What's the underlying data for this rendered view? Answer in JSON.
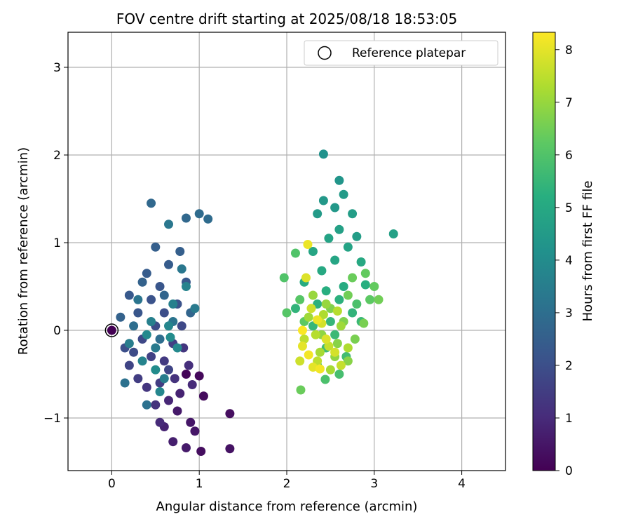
{
  "chart_data": {
    "type": "scatter",
    "title": "FOV centre drift starting at 2025/08/18 18:53:05",
    "xlabel": "Angular distance from reference (arcmin)",
    "ylabel": "Rotation from reference (arcmin)",
    "xlim": [
      -0.5,
      4.5
    ],
    "ylim": [
      -1.6,
      3.4
    ],
    "xticks": [
      "0",
      "1",
      "2",
      "3",
      "4"
    ],
    "yticks": [
      "−1",
      "0",
      "1",
      "2",
      "3"
    ],
    "xtick_values": [
      0,
      1,
      2,
      3,
      4
    ],
    "ytick_values": [
      -1,
      0,
      1,
      2,
      3
    ],
    "grid": true,
    "legend": {
      "position": "top-right",
      "label": "Reference platepar"
    },
    "reference_point": {
      "x": 0,
      "y": 0
    },
    "colorbar": {
      "label": "Hours from first FF file",
      "colormap": "viridis",
      "range": [
        0,
        8.33
      ],
      "ticks": [
        "0",
        "1",
        "2",
        "3",
        "4",
        "5",
        "6",
        "7",
        "8"
      ],
      "tick_values": [
        0,
        1,
        2,
        3,
        4,
        5,
        6,
        7,
        8
      ]
    },
    "points": [
      {
        "x": 0.85,
        "y": -0.5,
        "hours": 0.1
      },
      {
        "x": 1.0,
        "y": -0.52,
        "hours": 0.2
      },
      {
        "x": 1.05,
        "y": -0.75,
        "hours": 0.25
      },
      {
        "x": 1.02,
        "y": -1.38,
        "hours": 0.3
      },
      {
        "x": 1.35,
        "y": -0.95,
        "hours": 0.3
      },
      {
        "x": 1.35,
        "y": -1.35,
        "hours": 0.4
      },
      {
        "x": 0.9,
        "y": -1.05,
        "hours": 0.5
      },
      {
        "x": 0.95,
        "y": -1.15,
        "hours": 0.5
      },
      {
        "x": 0.85,
        "y": -1.34,
        "hours": 0.6
      },
      {
        "x": 0.75,
        "y": -0.92,
        "hours": 0.6
      },
      {
        "x": 0.7,
        "y": -1.27,
        "hours": 0.7
      },
      {
        "x": 0.6,
        "y": -1.1,
        "hours": 0.8
      },
      {
        "x": 0.78,
        "y": -0.72,
        "hours": 0.8
      },
      {
        "x": 0.65,
        "y": -0.8,
        "hours": 0.9
      },
      {
        "x": 0.55,
        "y": -1.05,
        "hours": 1.0
      },
      {
        "x": 0.92,
        "y": -0.62,
        "hours": 1.0
      },
      {
        "x": 0.88,
        "y": -0.4,
        "hours": 1.1
      },
      {
        "x": 0.5,
        "y": -0.85,
        "hours": 1.2
      },
      {
        "x": 0.72,
        "y": -0.55,
        "hours": 1.2
      },
      {
        "x": 0.4,
        "y": -0.65,
        "hours": 1.3
      },
      {
        "x": 0.82,
        "y": -0.2,
        "hours": 1.3
      },
      {
        "x": 0.6,
        "y": -0.35,
        "hours": 1.4
      },
      {
        "x": 0.3,
        "y": -0.55,
        "hours": 1.5
      },
      {
        "x": 0.55,
        "y": -0.6,
        "hours": 1.5
      },
      {
        "x": 0.45,
        "y": -0.3,
        "hours": 1.6
      },
      {
        "x": 0.7,
        "y": -0.15,
        "hours": 1.6
      },
      {
        "x": 0.2,
        "y": -0.4,
        "hours": 1.7
      },
      {
        "x": 0.65,
        "y": -0.45,
        "hours": 1.7
      },
      {
        "x": 0.8,
        "y": 0.05,
        "hours": 1.8
      },
      {
        "x": 0.35,
        "y": -0.1,
        "hours": 1.8
      },
      {
        "x": 0.5,
        "y": 0.05,
        "hours": 1.9
      },
      {
        "x": 0.25,
        "y": -0.25,
        "hours": 1.9
      },
      {
        "x": 0.6,
        "y": 0.2,
        "hours": 2.0
      },
      {
        "x": 0.15,
        "y": -0.2,
        "hours": 2.0
      },
      {
        "x": 0.45,
        "y": 0.35,
        "hours": 2.1
      },
      {
        "x": 0.75,
        "y": 0.3,
        "hours": 2.1
      },
      {
        "x": 0.3,
        "y": 0.2,
        "hours": 2.2
      },
      {
        "x": 0.55,
        "y": 0.5,
        "hours": 2.2
      },
      {
        "x": 0.2,
        "y": 0.4,
        "hours": 2.3
      },
      {
        "x": 0.85,
        "y": 0.55,
        "hours": 2.3
      },
      {
        "x": 0.4,
        "y": 0.65,
        "hours": 2.4
      },
      {
        "x": 0.65,
        "y": 0.75,
        "hours": 2.4
      },
      {
        "x": 0.5,
        "y": 0.95,
        "hours": 2.5
      },
      {
        "x": 0.78,
        "y": 0.9,
        "hours": 2.5
      },
      {
        "x": 0.1,
        "y": 0.15,
        "hours": 2.6
      },
      {
        "x": 0.35,
        "y": 0.55,
        "hours": 2.6
      },
      {
        "x": 0.6,
        "y": 0.4,
        "hours": 2.7
      },
      {
        "x": 0.9,
        "y": 0.2,
        "hours": 2.7
      },
      {
        "x": 0.45,
        "y": 1.45,
        "hours": 2.8
      },
      {
        "x": 0.85,
        "y": 1.28,
        "hours": 2.8
      },
      {
        "x": 1.0,
        "y": 1.33,
        "hours": 2.9
      },
      {
        "x": 1.1,
        "y": 1.27,
        "hours": 2.9
      },
      {
        "x": 0.25,
        "y": 0.05,
        "hours": 3.0
      },
      {
        "x": 0.55,
        "y": -0.1,
        "hours": 3.0
      },
      {
        "x": 0.15,
        "y": -0.6,
        "hours": 3.1
      },
      {
        "x": 0.4,
        "y": -0.85,
        "hours": 3.1
      },
      {
        "x": 0.7,
        "y": 0.1,
        "hours": 3.2
      },
      {
        "x": 0.3,
        "y": 0.35,
        "hours": 3.2
      },
      {
        "x": 0.65,
        "y": 1.21,
        "hours": 3.3
      },
      {
        "x": 0.8,
        "y": 0.7,
        "hours": 3.3
      },
      {
        "x": 0.5,
        "y": -0.2,
        "hours": 3.4
      },
      {
        "x": 0.95,
        "y": 0.25,
        "hours": 3.4
      },
      {
        "x": 0.2,
        "y": -0.15,
        "hours": 3.5
      },
      {
        "x": 0.6,
        "y": -0.55,
        "hours": 3.5
      },
      {
        "x": 0.45,
        "y": 0.1,
        "hours": 3.6
      },
      {
        "x": 0.7,
        "y": 0.3,
        "hours": 3.6
      },
      {
        "x": 0.85,
        "y": 0.5,
        "hours": 3.7
      },
      {
        "x": 0.35,
        "y": -0.35,
        "hours": 3.7
      },
      {
        "x": 0.65,
        "y": 0.05,
        "hours": 3.8
      },
      {
        "x": 0.55,
        "y": -0.7,
        "hours": 3.8
      },
      {
        "x": 0.4,
        "y": -0.05,
        "hours": 3.9
      },
      {
        "x": 0.75,
        "y": -0.2,
        "hours": 3.9
      },
      {
        "x": 0.67,
        "y": -0.08,
        "hours": 4.0
      },
      {
        "x": 0.5,
        "y": -0.45,
        "hours": 4.0
      },
      {
        "x": 2.42,
        "y": 2.01,
        "hours": 4.2
      },
      {
        "x": 2.6,
        "y": 1.71,
        "hours": 4.3
      },
      {
        "x": 2.42,
        "y": 1.48,
        "hours": 4.4
      },
      {
        "x": 2.55,
        "y": 1.4,
        "hours": 4.4
      },
      {
        "x": 2.65,
        "y": 1.55,
        "hours": 4.5
      },
      {
        "x": 2.35,
        "y": 1.33,
        "hours": 4.5
      },
      {
        "x": 2.75,
        "y": 1.33,
        "hours": 4.6
      },
      {
        "x": 2.8,
        "y": 1.07,
        "hours": 4.6
      },
      {
        "x": 2.6,
        "y": 1.15,
        "hours": 4.7
      },
      {
        "x": 3.22,
        "y": 1.1,
        "hours": 4.7
      },
      {
        "x": 2.48,
        "y": 1.05,
        "hours": 4.8
      },
      {
        "x": 2.7,
        "y": 0.95,
        "hours": 4.8
      },
      {
        "x": 2.3,
        "y": 0.9,
        "hours": 4.9
      },
      {
        "x": 2.55,
        "y": 0.8,
        "hours": 4.9
      },
      {
        "x": 2.85,
        "y": 0.78,
        "hours": 5.0
      },
      {
        "x": 2.4,
        "y": 0.68,
        "hours": 5.0
      },
      {
        "x": 2.2,
        "y": 0.55,
        "hours": 5.1
      },
      {
        "x": 2.65,
        "y": 0.5,
        "hours": 5.1
      },
      {
        "x": 2.45,
        "y": 0.45,
        "hours": 5.2
      },
      {
        "x": 2.9,
        "y": 0.52,
        "hours": 5.2
      },
      {
        "x": 2.35,
        "y": 0.3,
        "hours": 5.3
      },
      {
        "x": 2.6,
        "y": 0.35,
        "hours": 5.3
      },
      {
        "x": 2.1,
        "y": 0.25,
        "hours": 5.4
      },
      {
        "x": 2.75,
        "y": 0.2,
        "hours": 5.4
      },
      {
        "x": 2.5,
        "y": 0.1,
        "hours": 5.5
      },
      {
        "x": 2.3,
        "y": 0.05,
        "hours": 5.5
      },
      {
        "x": 2.85,
        "y": 0.1,
        "hours": 5.6
      },
      {
        "x": 2.55,
        "y": -0.05,
        "hours": 5.6
      },
      {
        "x": 2.45,
        "y": -0.2,
        "hours": 5.7
      },
      {
        "x": 2.68,
        "y": -0.3,
        "hours": 5.7
      },
      {
        "x": 2.35,
        "y": -0.4,
        "hours": 5.8
      },
      {
        "x": 2.6,
        "y": -0.5,
        "hours": 5.8
      },
      {
        "x": 2.44,
        "y": -0.56,
        "hours": 5.9
      },
      {
        "x": 2.8,
        "y": 0.3,
        "hours": 5.9
      },
      {
        "x": 1.97,
        "y": 0.6,
        "hours": 6.0
      },
      {
        "x": 2.1,
        "y": 0.88,
        "hours": 6.0
      },
      {
        "x": 2.0,
        "y": 0.2,
        "hours": 6.1
      },
      {
        "x": 2.15,
        "y": 0.35,
        "hours": 6.1
      },
      {
        "x": 2.2,
        "y": 0.1,
        "hours": 6.2
      },
      {
        "x": 2.95,
        "y": 0.35,
        "hours": 6.2
      },
      {
        "x": 3.0,
        "y": 0.5,
        "hours": 6.3
      },
      {
        "x": 2.9,
        "y": 0.65,
        "hours": 6.3
      },
      {
        "x": 2.16,
        "y": -0.68,
        "hours": 6.4
      },
      {
        "x": 2.75,
        "y": 0.6,
        "hours": 6.4
      },
      {
        "x": 2.7,
        "y": 0.4,
        "hours": 6.5
      },
      {
        "x": 3.05,
        "y": 0.35,
        "hours": 6.5
      },
      {
        "x": 2.88,
        "y": 0.08,
        "hours": 6.6
      },
      {
        "x": 2.78,
        "y": -0.1,
        "hours": 6.6
      },
      {
        "x": 2.5,
        "y": 0.25,
        "hours": 6.7
      },
      {
        "x": 2.65,
        "y": 0.1,
        "hours": 6.7
      },
      {
        "x": 2.58,
        "y": -0.15,
        "hours": 6.8
      },
      {
        "x": 2.7,
        "y": -0.35,
        "hours": 6.8
      },
      {
        "x": 2.4,
        "y": -0.05,
        "hours": 6.9
      },
      {
        "x": 2.55,
        "y": -0.3,
        "hours": 6.9
      },
      {
        "x": 2.45,
        "y": 0.3,
        "hours": 7.0
      },
      {
        "x": 2.3,
        "y": 0.4,
        "hours": 7.0
      },
      {
        "x": 2.25,
        "y": 0.15,
        "hours": 7.1
      },
      {
        "x": 2.62,
        "y": 0.05,
        "hours": 7.1
      },
      {
        "x": 2.38,
        "y": -0.25,
        "hours": 7.2
      },
      {
        "x": 2.5,
        "y": -0.45,
        "hours": 7.2
      },
      {
        "x": 2.7,
        "y": -0.2,
        "hours": 7.3
      },
      {
        "x": 2.42,
        "y": 0.18,
        "hours": 7.3
      },
      {
        "x": 2.33,
        "y": -0.05,
        "hours": 7.4
      },
      {
        "x": 2.58,
        "y": 0.22,
        "hours": 7.4
      },
      {
        "x": 2.2,
        "y": -0.1,
        "hours": 7.5
      },
      {
        "x": 2.35,
        "y": -0.35,
        "hours": 7.5
      },
      {
        "x": 2.48,
        "y": -0.18,
        "hours": 7.6
      },
      {
        "x": 2.62,
        "y": -0.4,
        "hours": 7.6
      },
      {
        "x": 2.15,
        "y": -0.35,
        "hours": 7.7
      },
      {
        "x": 2.28,
        "y": 0.25,
        "hours": 7.7
      },
      {
        "x": 2.4,
        "y": 0.08,
        "hours": 7.8
      },
      {
        "x": 2.55,
        "y": -0.25,
        "hours": 7.8
      },
      {
        "x": 2.22,
        "y": 0.6,
        "hours": 7.9
      },
      {
        "x": 2.45,
        "y": -0.1,
        "hours": 7.9
      },
      {
        "x": 2.18,
        "y": -0.18,
        "hours": 8.0
      },
      {
        "x": 2.3,
        "y": -0.42,
        "hours": 8.0
      },
      {
        "x": 2.24,
        "y": 0.98,
        "hours": 8.1
      },
      {
        "x": 2.35,
        "y": 0.12,
        "hours": 8.1
      },
      {
        "x": 2.25,
        "y": -0.28,
        "hours": 8.2
      },
      {
        "x": 2.38,
        "y": -0.44,
        "hours": 8.2
      },
      {
        "x": 2.18,
        "y": 0.0,
        "hours": 8.3
      }
    ]
  }
}
